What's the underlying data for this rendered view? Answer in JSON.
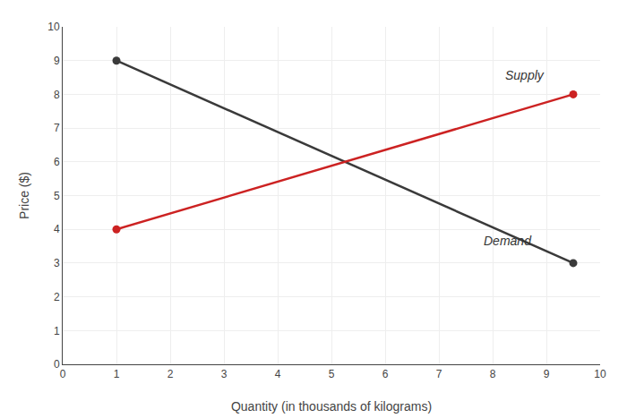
{
  "chart_data": {
    "type": "line",
    "x": [
      1,
      9.5
    ],
    "series": [
      {
        "color": "#3a3a3a",
        "values": [
          9,
          3
        ],
        "marker": "circle"
      },
      {
        "color": "#cc2222",
        "values": [
          4,
          8
        ],
        "marker": "circle"
      }
    ],
    "annotations": [
      {
        "text": "Supply",
        "x": 8.2,
        "y": 8.3
      },
      {
        "text": "Demand",
        "x": 7.8,
        "y": 3.4
      }
    ],
    "xlabel": "Quantity (in thousands of kilograms)",
    "ylabel": "Price ($)",
    "xlim": [
      0,
      10
    ],
    "ylim": [
      0,
      10
    ],
    "xticks": [
      0,
      1,
      2,
      3,
      4,
      5,
      6,
      7,
      8,
      9,
      10
    ],
    "yticks": [
      0,
      1,
      2,
      3,
      4,
      5,
      6,
      7,
      8,
      9,
      10
    ],
    "grid": true
  }
}
